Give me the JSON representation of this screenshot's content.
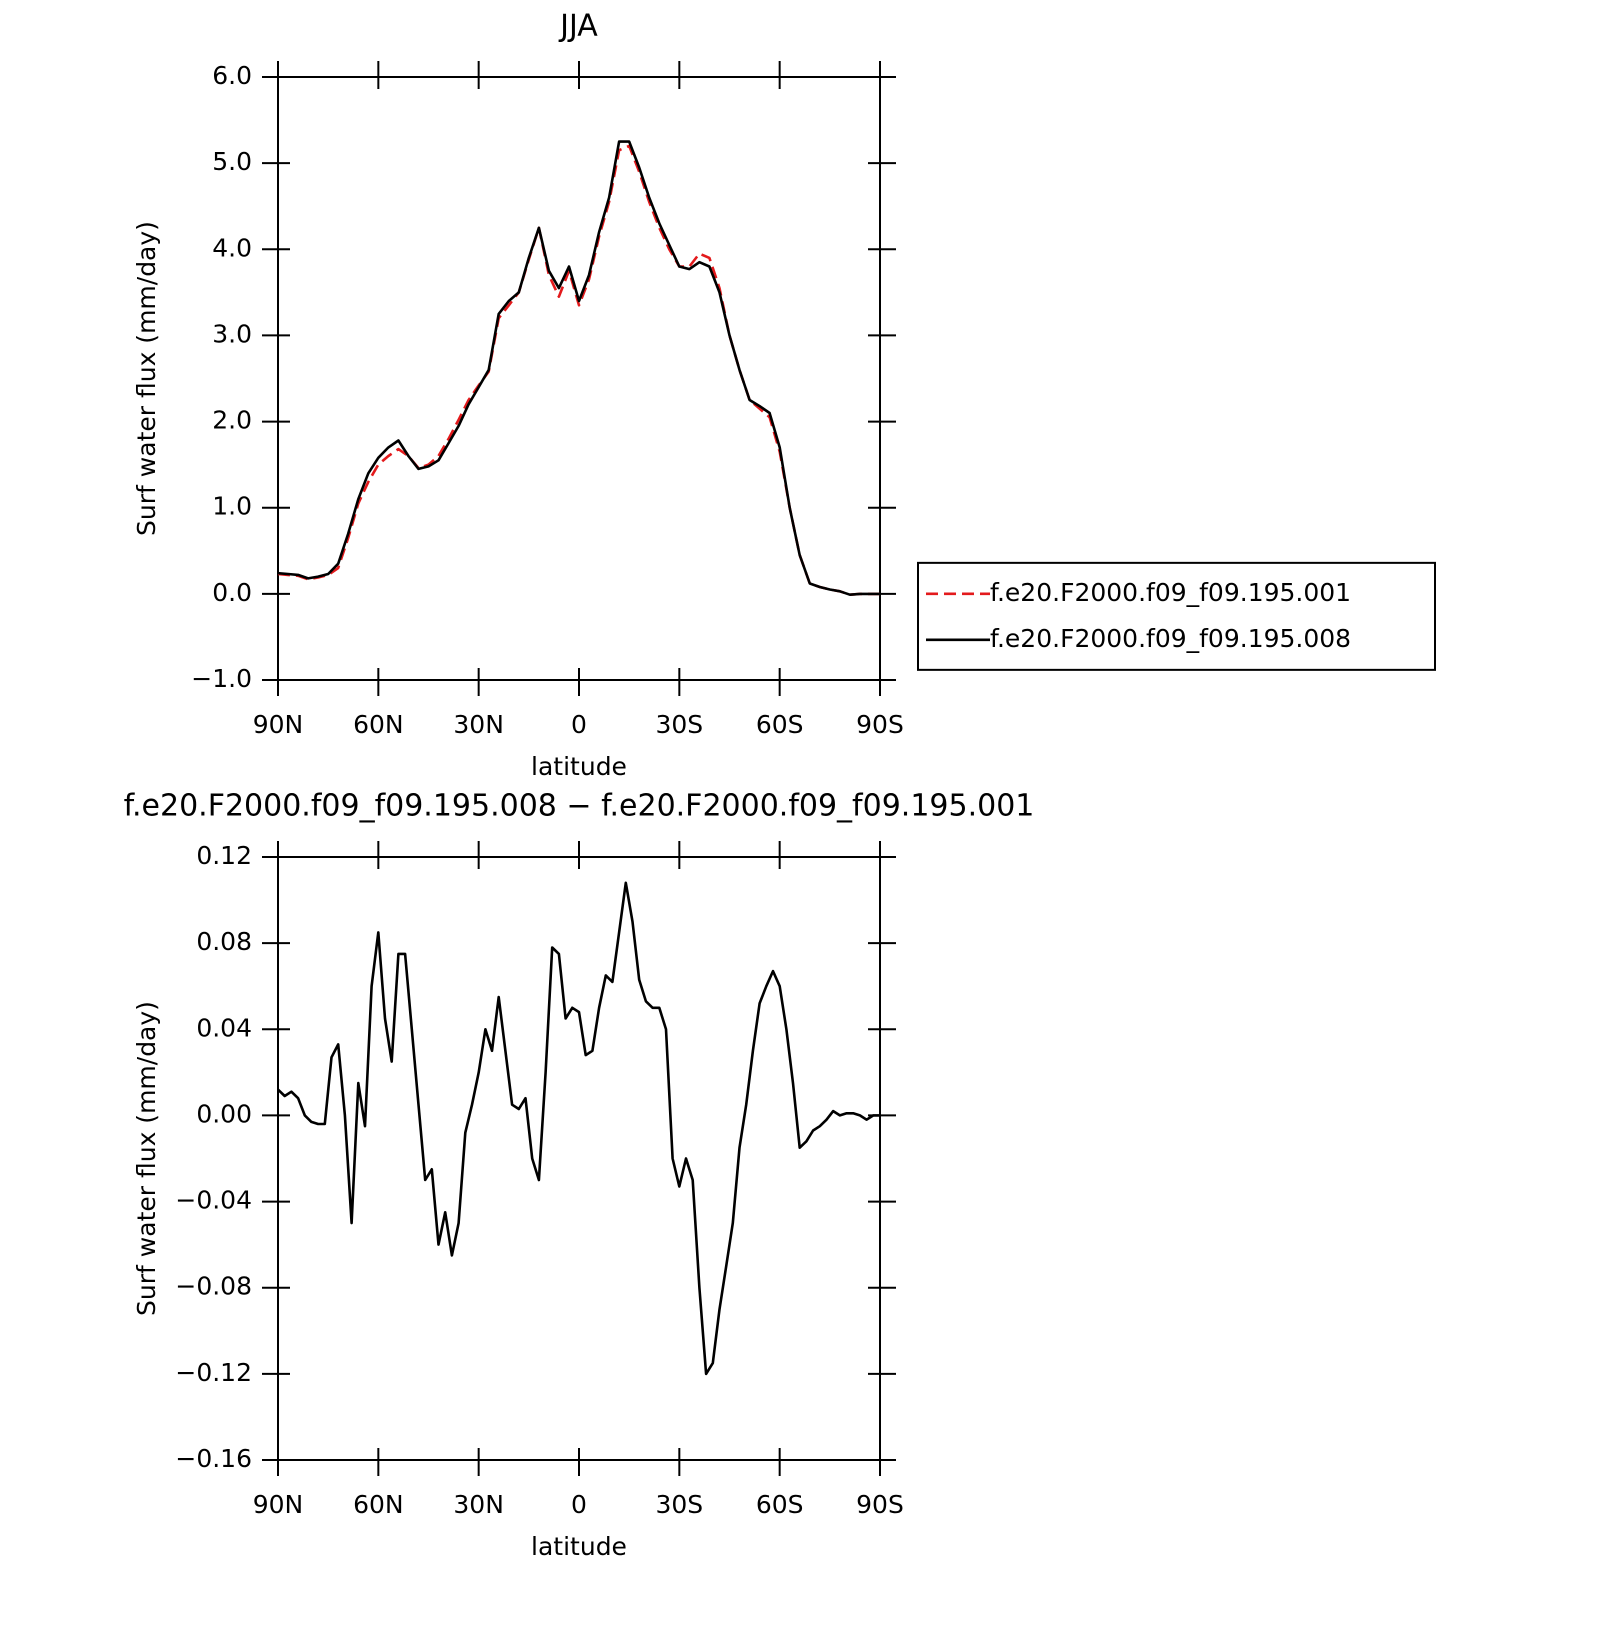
{
  "chart_data": [
    {
      "type": "line",
      "title": "JJA",
      "x_label": "latitude",
      "y_label": "Surf water flux (mm/day)",
      "x": [
        90,
        87,
        84,
        81,
        78,
        75,
        72,
        69,
        66,
        63,
        60,
        57,
        54,
        51,
        48,
        45,
        42,
        39,
        36,
        33,
        30,
        27,
        24,
        21,
        18,
        15,
        12,
        9,
        6,
        3,
        0,
        -3,
        -6,
        -9,
        -12,
        -15,
        -18,
        -21,
        -24,
        -27,
        -30,
        -33,
        -36,
        -39,
        -42,
        -45,
        -48,
        -51,
        -54,
        -57,
        -60,
        -63,
        -66,
        -69,
        -72,
        -75,
        -78,
        -81,
        -84,
        -87,
        -90
      ],
      "xlim": [
        90,
        -90
      ],
      "xticks": [
        {
          "value": 90,
          "label": "90N"
        },
        {
          "value": 60,
          "label": "60N"
        },
        {
          "value": 30,
          "label": "30N"
        },
        0,
        {
          "value": -30,
          "label": "30S"
        },
        {
          "value": -60,
          "label": "60S"
        },
        {
          "value": -90,
          "label": "90S"
        }
      ],
      "ylim": [
        -1,
        6
      ],
      "yticks": [
        {
          "value": -1,
          "label": "−1.0"
        },
        {
          "value": 0,
          "label": "0.0"
        },
        {
          "value": 1,
          "label": "1.0"
        },
        {
          "value": 2,
          "label": "2.0"
        },
        {
          "value": 3,
          "label": "3.0"
        },
        {
          "value": 4,
          "label": "4.0"
        },
        {
          "value": 5,
          "label": "5.0"
        },
        {
          "value": 6,
          "label": "6.0"
        }
      ],
      "legend_position": "outside-right",
      "series": [
        {
          "name": "f.e20.F2000.f09_f09.195.001",
          "color": "#e31a1c",
          "dash": true,
          "values": [
            0.23,
            0.22,
            0.21,
            0.17,
            0.19,
            0.22,
            0.3,
            0.65,
            1.05,
            1.3,
            1.5,
            1.6,
            1.68,
            1.6,
            1.46,
            1.5,
            1.6,
            1.8,
            2.02,
            2.25,
            2.42,
            2.58,
            3.2,
            3.35,
            3.5,
            3.88,
            4.25,
            3.7,
            3.45,
            3.75,
            3.35,
            3.65,
            4.15,
            4.55,
            5.15,
            5.2,
            4.9,
            4.55,
            4.25,
            4.0,
            3.8,
            3.8,
            3.95,
            3.9,
            3.55,
            3.0,
            2.6,
            2.25,
            2.15,
            2.05,
            1.65,
            1.0,
            0.45,
            0.12,
            0.08,
            0.05,
            0.03,
            -0.01,
            0.0,
            0.0,
            0.0
          ]
        },
        {
          "name": "f.e20.F2000.f09_f09.195.008",
          "color": "#000000",
          "dash": false,
          "values": [
            0.24,
            0.23,
            0.22,
            0.18,
            0.2,
            0.23,
            0.35,
            0.7,
            1.1,
            1.4,
            1.58,
            1.7,
            1.78,
            1.6,
            1.45,
            1.48,
            1.55,
            1.75,
            1.95,
            2.2,
            2.4,
            2.6,
            3.25,
            3.4,
            3.5,
            3.9,
            4.25,
            3.75,
            3.55,
            3.8,
            3.4,
            3.7,
            4.2,
            4.6,
            5.25,
            5.25,
            4.95,
            4.6,
            4.3,
            4.05,
            3.8,
            3.77,
            3.85,
            3.8,
            3.5,
            3.0,
            2.6,
            2.25,
            2.18,
            2.1,
            1.7,
            1.0,
            0.45,
            0.12,
            0.08,
            0.05,
            0.03,
            -0.01,
            0.0,
            0.0,
            0.0
          ]
        }
      ]
    },
    {
      "type": "line",
      "title": "f.e20.F2000.f09_f09.195.008 − f.e20.F2000.f09_f09.195.001",
      "x_label": "latitude",
      "y_label": "Surf water flux (mm/day)",
      "x": [
        90,
        88,
        86,
        84,
        82,
        80,
        78,
        76,
        74,
        72,
        70,
        68,
        66,
        64,
        62,
        60,
        58,
        56,
        54,
        52,
        50,
        48,
        46,
        44,
        42,
        40,
        38,
        36,
        34,
        32,
        30,
        28,
        26,
        24,
        22,
        20,
        18,
        16,
        14,
        12,
        10,
        8,
        6,
        4,
        2,
        0,
        -2,
        -4,
        -6,
        -8,
        -10,
        -12,
        -14,
        -16,
        -18,
        -20,
        -22,
        -24,
        -26,
        -28,
        -30,
        -32,
        -34,
        -36,
        -38,
        -40,
        -42,
        -44,
        -46,
        -48,
        -50,
        -52,
        -54,
        -56,
        -58,
        -60,
        -62,
        -64,
        -66,
        -68,
        -70,
        -72,
        -74,
        -76,
        -78,
        -80,
        -82,
        -84,
        -86,
        -88,
        -90
      ],
      "xlim": [
        90,
        -90
      ],
      "xticks": [
        {
          "value": 90,
          "label": "90N"
        },
        {
          "value": 60,
          "label": "60N"
        },
        {
          "value": 30,
          "label": "30N"
        },
        0,
        {
          "value": -30,
          "label": "30S"
        },
        {
          "value": -60,
          "label": "60S"
        },
        {
          "value": -90,
          "label": "90S"
        }
      ],
      "ylim": [
        -0.16,
        0.12
      ],
      "yticks": [
        {
          "value": -0.16,
          "label": "−0.16"
        },
        {
          "value": -0.12,
          "label": "−0.12"
        },
        {
          "value": -0.08,
          "label": "−0.08"
        },
        {
          "value": -0.04,
          "label": "−0.04"
        },
        {
          "value": 0,
          "label": "0.00"
        },
        {
          "value": 0.04,
          "label": "0.04"
        },
        {
          "value": 0.08,
          "label": "0.08"
        },
        {
          "value": 0.12,
          "label": "0.12"
        }
      ],
      "series": [
        {
          "color": "#000000",
          "dash": false,
          "values": [
            0.012,
            0.009,
            0.011,
            0.008,
            0.0,
            -0.003,
            -0.004,
            -0.004,
            0.027,
            0.033,
            0.0,
            -0.05,
            0.015,
            -0.005,
            0.06,
            0.085,
            0.045,
            0.025,
            0.075,
            0.075,
            0.04,
            0.005,
            -0.03,
            -0.025,
            -0.06,
            -0.045,
            -0.065,
            -0.05,
            -0.008,
            0.005,
            0.02,
            0.04,
            0.03,
            0.055,
            0.03,
            0.005,
            0.003,
            0.008,
            -0.02,
            -0.03,
            0.02,
            0.078,
            0.075,
            0.045,
            0.05,
            0.048,
            0.028,
            0.03,
            0.05,
            0.065,
            0.062,
            0.085,
            0.108,
            0.09,
            0.063,
            0.053,
            0.05,
            0.05,
            0.04,
            -0.02,
            -0.033,
            -0.02,
            -0.03,
            -0.08,
            -0.12,
            -0.115,
            -0.09,
            -0.07,
            -0.05,
            -0.015,
            0.005,
            0.03,
            0.052,
            0.06,
            0.067,
            0.06,
            0.04,
            0.015,
            -0.015,
            -0.012,
            -0.007,
            -0.005,
            -0.002,
            0.002,
            0.0,
            0.001,
            0.001,
            0.0,
            -0.002,
            0.0,
            0.0
          ]
        }
      ]
    }
  ]
}
